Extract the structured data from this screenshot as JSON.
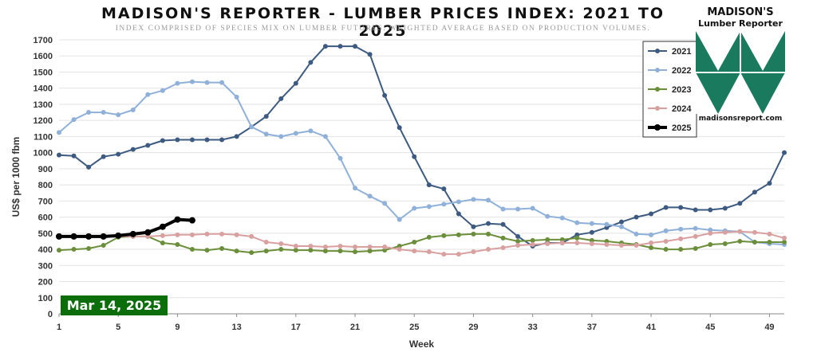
{
  "title": "MADISON'S REPORTER - LUMBER PRICES INDEX: 2021 TO 2025",
  "subtitle": "INDEX COMPRISED OF SPECIES MIX ON LUMBER FUTURES. WEIGHTED AVERAGE BASED ON PRODUCTION VOLUMES.",
  "logo": {
    "name_line1": "MADISON'S",
    "name_line2": "Lumber Reporter",
    "url": "madisonsreport.com",
    "color": "#1a7a5e"
  },
  "date_badge": "Mar 14, 2025",
  "chart_data": {
    "type": "line",
    "xlabel": "Week",
    "ylabel": "US$ per 1000 fbm",
    "xlim": [
      1,
      50
    ],
    "ylim": [
      0,
      1700
    ],
    "x_ticks": [
      1,
      5,
      9,
      13,
      17,
      21,
      25,
      29,
      33,
      37,
      41,
      45,
      49
    ],
    "y_ticks": [
      0,
      100,
      200,
      300,
      400,
      500,
      600,
      700,
      800,
      900,
      1000,
      1100,
      1200,
      1300,
      1400,
      1500,
      1600,
      1700
    ],
    "grid": "horizontal",
    "legend_position": "top-right",
    "series": [
      {
        "name": "2021",
        "color": "#3d5a80",
        "x_start": 1,
        "values": [
          985,
          980,
          910,
          975,
          990,
          1020,
          1045,
          1075,
          1080,
          1080,
          1080,
          1080,
          1100,
          1160,
          1225,
          1335,
          1430,
          1560,
          1660,
          1660,
          1660,
          1610,
          1355,
          1155,
          975,
          800,
          775,
          620,
          540,
          560,
          555,
          480,
          420,
          440,
          440,
          490,
          505,
          535,
          570,
          600,
          620,
          660,
          660,
          645,
          645,
          655,
          685,
          755,
          810,
          1000
        ]
      },
      {
        "name": "2022",
        "color": "#8fb0d8",
        "x_start": 1,
        "values": [
          1125,
          1205,
          1250,
          1250,
          1235,
          1265,
          1360,
          1385,
          1430,
          1440,
          1435,
          1435,
          1345,
          1160,
          1115,
          1100,
          1120,
          1135,
          1100,
          965,
          780,
          730,
          685,
          585,
          655,
          665,
          680,
          695,
          710,
          705,
          650,
          650,
          655,
          605,
          595,
          565,
          560,
          555,
          540,
          495,
          490,
          515,
          525,
          530,
          520,
          515,
          510,
          445,
          435,
          430
        ]
      },
      {
        "name": "2023",
        "color": "#6b8e3a",
        "x_start": 1,
        "values": [
          395,
          400,
          405,
          425,
          475,
          480,
          480,
          440,
          430,
          400,
          395,
          405,
          390,
          380,
          390,
          400,
          395,
          395,
          390,
          390,
          385,
          390,
          395,
          420,
          445,
          475,
          485,
          490,
          495,
          495,
          470,
          450,
          455,
          460,
          460,
          470,
          455,
          450,
          440,
          430,
          410,
          400,
          400,
          405,
          430,
          435,
          450,
          445,
          445,
          445
        ]
      },
      {
        "name": "2024",
        "color": "#d9a0a0",
        "x_start": 1,
        "values": [
          480,
          480,
          475,
          475,
          480,
          480,
          480,
          485,
          490,
          490,
          495,
          495,
          490,
          480,
          445,
          435,
          420,
          420,
          415,
          420,
          415,
          415,
          415,
          400,
          390,
          385,
          370,
          370,
          385,
          400,
          410,
          425,
          430,
          435,
          440,
          440,
          435,
          430,
          425,
          425,
          440,
          450,
          465,
          480,
          500,
          505,
          510,
          505,
          495,
          470
        ]
      },
      {
        "name": "2025",
        "color": "#000000",
        "x_start": 1,
        "values": [
          480,
          480,
          480,
          480,
          485,
          495,
          505,
          540,
          585,
          580
        ]
      }
    ]
  }
}
